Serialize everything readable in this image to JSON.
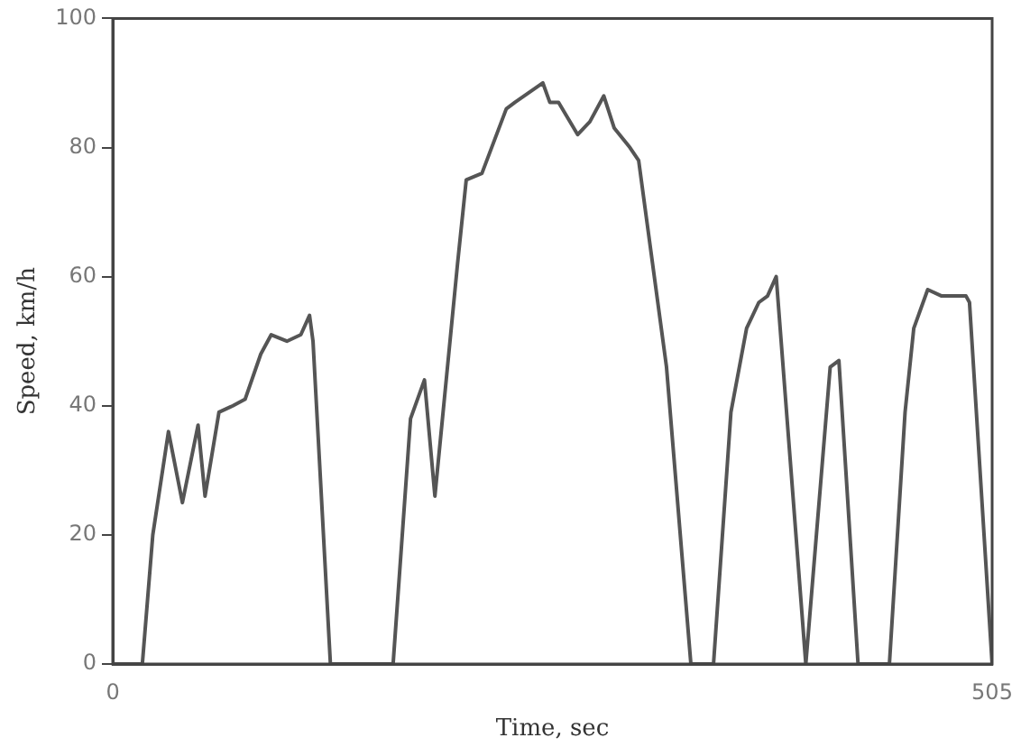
{
  "chart_data": {
    "type": "line",
    "xlabel": "Time, sec",
    "ylabel": "Speed, km/h",
    "xlim": [
      0,
      505
    ],
    "xticks": [
      0,
      505
    ],
    "ylim": [
      0,
      100
    ],
    "yticks": [
      0,
      20,
      40,
      60,
      80,
      100
    ],
    "grid": false,
    "legend": false,
    "marker": "none",
    "line_style": "solid",
    "series": [
      {
        "color": "#555555",
        "x": [
          0,
          17,
          23,
          32,
          40,
          49,
          53,
          61,
          69,
          76,
          85,
          91,
          100,
          108,
          113,
          115,
          125,
          161,
          171,
          179,
          185,
          198,
          203,
          212,
          226,
          231,
          247,
          251,
          256,
          267,
          274,
          282,
          288,
          297,
          302,
          318,
          332,
          345,
          355,
          364,
          371,
          376,
          381,
          398,
          412,
          417,
          428,
          446,
          455,
          460,
          468,
          476,
          490,
          492,
          505
        ],
        "values": [
          0,
          0,
          20,
          36,
          25,
          37,
          26,
          39,
          40,
          41,
          48,
          51,
          50,
          51,
          54,
          50,
          0,
          0,
          38,
          44,
          26,
          62,
          75,
          76,
          86,
          87,
          90,
          87,
          87,
          82,
          84,
          88,
          83,
          80,
          78,
          46,
          0,
          0,
          39,
          52,
          56,
          57,
          60,
          0,
          46,
          47,
          0,
          0,
          39,
          52,
          58,
          57,
          57,
          56,
          0
        ]
      }
    ]
  }
}
